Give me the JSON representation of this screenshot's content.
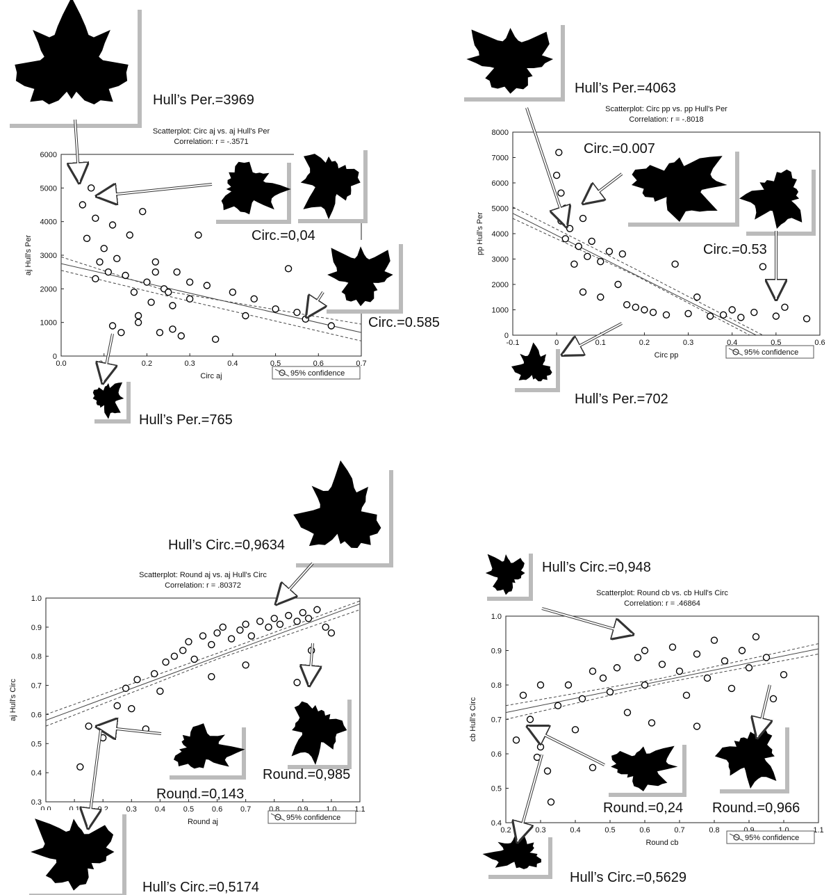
{
  "chart_data": [
    {
      "type": "scatter",
      "title": "Scatterplot: Circ aj vs. aj Hull's Per",
      "subtitle": "Correlation: r = -.3571",
      "x_label": "Circ aj",
      "y_label": "aj Hull's Per",
      "legend": "95% confidence",
      "xlim": [
        0,
        0.7
      ],
      "ylim": [
        0,
        6000
      ],
      "xticks": [
        {
          "value": 0,
          "label": "0.0"
        },
        0.1,
        0.2,
        0.3,
        0.4,
        0.5,
        0.6,
        0.7
      ],
      "yticks": [
        0,
        1000,
        2000,
        3000,
        4000,
        5000,
        6000
      ],
      "points": {
        "x": [
          0.05,
          0.06,
          0.07,
          0.08,
          0.09,
          0.1,
          0.11,
          0.12,
          0.13,
          0.14,
          0.15,
          0.16,
          0.17,
          0.18,
          0.19,
          0.2,
          0.21,
          0.22,
          0.23,
          0.24,
          0.25,
          0.26,
          0.27,
          0.28,
          0.3,
          0.32,
          0.34,
          0.36,
          0.4,
          0.43,
          0.45,
          0.5,
          0.53,
          0.55,
          0.57,
          0.63,
          0.08,
          0.12,
          0.18,
          0.22,
          0.26,
          0.3
        ],
        "y": [
          4500,
          3500,
          5000,
          4100,
          2800,
          3200,
          2500,
          900,
          2900,
          700,
          2400,
          3600,
          1900,
          1000,
          4300,
          2200,
          1600,
          2800,
          700,
          2000,
          1900,
          1500,
          2500,
          600,
          1700,
          3600,
          2100,
          500,
          1900,
          1200,
          1700,
          1400,
          2600,
          1300,
          1100,
          900,
          2300,
          3900,
          1200,
          2500,
          800,
          2200
        ]
      },
      "fit": {
        "x": [
          0,
          0.7
        ],
        "y": [
          2750,
          700
        ]
      },
      "conf_upper": {
        "x": [
          0,
          0.25,
          0.7
        ],
        "y": [
          2950,
          1920,
          950
        ]
      },
      "conf_lower": {
        "x": [
          0,
          0.25,
          0.7
        ],
        "y": [
          2550,
          1780,
          450
        ]
      },
      "annotations": [
        "Hull’s Per.=3969",
        "Circ.=0,04",
        "Circ.=0.585",
        "Hull’s Per.=765"
      ]
    },
    {
      "type": "scatter",
      "title": "Scatterplot: Circ pp vs. pp Hull's Per",
      "subtitle": "Correlation: r = -.8018",
      "x_label": "Circ pp",
      "y_label": "pp Hull's Per",
      "legend": "95% confidence",
      "xlim": [
        -0.1,
        0.6
      ],
      "ylim": [
        0,
        8000
      ],
      "xticks": [
        -0.1,
        0,
        0.1,
        0.2,
        0.3,
        0.4,
        0.5,
        0.6
      ],
      "yticks": [
        0,
        1000,
        2000,
        3000,
        4000,
        5000,
        6000,
        7000,
        8000
      ],
      "points": {
        "x": [
          0,
          0.005,
          0.01,
          0.01,
          0.02,
          0.02,
          0.03,
          0.04,
          0.05,
          0.06,
          0.07,
          0.08,
          0.1,
          0.12,
          0.14,
          0.16,
          0.18,
          0.2,
          0.22,
          0.25,
          0.27,
          0.3,
          0.32,
          0.35,
          0.38,
          0.4,
          0.42,
          0.45,
          0.47,
          0.5,
          0.52,
          0.57,
          0.1,
          0.15,
          0.06
        ],
        "y": [
          6300,
          7200,
          5600,
          4500,
          5000,
          3800,
          4200,
          2800,
          3500,
          4600,
          3100,
          3700,
          2900,
          3300,
          2000,
          1200,
          1100,
          1000,
          900,
          800,
          2800,
          850,
          1500,
          750,
          800,
          1000,
          700,
          900,
          2700,
          750,
          1100,
          650,
          1500,
          3200,
          1700
        ]
      },
      "fit": {
        "x": [
          -0.1,
          0.455
        ],
        "y": [
          4800,
          0
        ]
      },
      "conf_upper": {
        "x": [
          -0.1,
          0.18,
          0.47
        ],
        "y": [
          5050,
          2600,
          0
        ]
      },
      "conf_lower": {
        "x": [
          -0.1,
          0.18,
          0.44
        ],
        "y": [
          4600,
          2350,
          0
        ]
      },
      "annotations": [
        "Hull’s Per.=4063",
        "Circ.=0.007",
        "Circ.=0.53",
        "Hull’s Per.=702"
      ]
    },
    {
      "type": "scatter",
      "title": "Scatterplot: Round aj vs. aj Hull's Circ",
      "subtitle": "Correlation: r = .80372",
      "x_label": "Round aj",
      "y_label": "aj Hull's Circ",
      "legend": "95% confidence",
      "xlim": [
        0,
        1.1
      ],
      "ylim": [
        0.3,
        1.0
      ],
      "xticks": [
        {
          "value": 0,
          "label": "0.0"
        },
        0.1,
        0.2,
        0.3,
        0.4,
        0.5,
        0.6,
        0.7,
        0.8,
        0.9,
        {
          "value": 1,
          "label": "1.0"
        },
        1.1
      ],
      "yticks": [
        0.3,
        0.4,
        0.5,
        0.6,
        0.7,
        0.8,
        0.9,
        {
          "value": 1,
          "label": "1.0"
        }
      ],
      "points": {
        "x": [
          0.12,
          0.15,
          0.2,
          0.25,
          0.28,
          0.3,
          0.32,
          0.35,
          0.38,
          0.4,
          0.42,
          0.45,
          0.48,
          0.5,
          0.52,
          0.55,
          0.58,
          0.6,
          0.62,
          0.65,
          0.68,
          0.7,
          0.72,
          0.75,
          0.78,
          0.8,
          0.82,
          0.85,
          0.88,
          0.9,
          0.92,
          0.95,
          0.98,
          1.0,
          0.58,
          0.7,
          0.93,
          0.88
        ],
        "y": [
          0.42,
          0.56,
          0.52,
          0.63,
          0.69,
          0.62,
          0.72,
          0.55,
          0.74,
          0.68,
          0.78,
          0.8,
          0.82,
          0.85,
          0.79,
          0.87,
          0.84,
          0.88,
          0.9,
          0.86,
          0.89,
          0.91,
          0.87,
          0.92,
          0.9,
          0.93,
          0.91,
          0.94,
          0.92,
          0.95,
          0.93,
          0.96,
          0.9,
          0.88,
          0.73,
          0.77,
          0.82,
          0.71
        ]
      },
      "fit": {
        "x": [
          0,
          1.1
        ],
        "y": [
          0.58,
          0.98
        ]
      },
      "conf_upper": {
        "x": [
          0,
          0.6,
          1.1
        ],
        "y": [
          0.6,
          0.81,
          0.99
        ]
      },
      "conf_lower": {
        "x": [
          0,
          0.6,
          1.1
        ],
        "y": [
          0.56,
          0.79,
          0.96
        ]
      },
      "annotations": [
        "Hull’s Circ.=0,9634",
        "Round.=0,143",
        "Round.=0,985",
        "Hull’s Circ.=0,5174"
      ]
    },
    {
      "type": "scatter",
      "title": "Scatterplot: Round cb vs. cb Hull's Circ",
      "subtitle": "Correlation: r = .46864",
      "x_label": "Round cb",
      "y_label": "cb Hull's Circ",
      "legend": "95% confidence",
      "xlim": [
        0.2,
        1.1
      ],
      "ylim": [
        0.4,
        1.0
      ],
      "xticks": [
        0.2,
        0.3,
        0.4,
        0.5,
        0.6,
        0.7,
        0.8,
        0.9,
        {
          "value": 1,
          "label": "1.0"
        },
        1.1
      ],
      "yticks": [
        0.4,
        0.5,
        0.6,
        0.7,
        0.8,
        0.9,
        {
          "value": 1,
          "label": "1.0"
        }
      ],
      "points": {
        "x": [
          0.23,
          0.25,
          0.27,
          0.29,
          0.3,
          0.32,
          0.33,
          0.35,
          0.38,
          0.4,
          0.42,
          0.45,
          0.48,
          0.5,
          0.52,
          0.55,
          0.58,
          0.6,
          0.62,
          0.65,
          0.68,
          0.7,
          0.72,
          0.75,
          0.78,
          0.8,
          0.83,
          0.85,
          0.88,
          0.9,
          0.92,
          0.95,
          0.97,
          1.0,
          0.3,
          0.45,
          0.6,
          0.75
        ],
        "y": [
          0.64,
          0.77,
          0.7,
          0.59,
          0.62,
          0.55,
          0.46,
          0.74,
          0.8,
          0.67,
          0.76,
          0.56,
          0.82,
          0.78,
          0.85,
          0.72,
          0.88,
          0.8,
          0.69,
          0.86,
          0.91,
          0.84,
          0.77,
          0.89,
          0.82,
          0.93,
          0.87,
          0.79,
          0.9,
          0.85,
          0.94,
          0.88,
          0.76,
          0.83,
          0.8,
          0.84,
          0.9,
          0.68
        ]
      },
      "fit": {
        "x": [
          0.2,
          1.1
        ],
        "y": [
          0.72,
          0.905
        ]
      },
      "conf_upper": {
        "x": [
          0.2,
          0.65,
          1.1
        ],
        "y": [
          0.74,
          0.82,
          0.92
        ]
      },
      "conf_lower": {
        "x": [
          0.2,
          0.65,
          1.1
        ],
        "y": [
          0.7,
          0.805,
          0.89
        ]
      },
      "annotations": [
        "Hull’s Circ.=0,948",
        "Round.=0,24",
        "Round.=0,966",
        "Hull’s Circ.=0,5629"
      ]
    }
  ]
}
